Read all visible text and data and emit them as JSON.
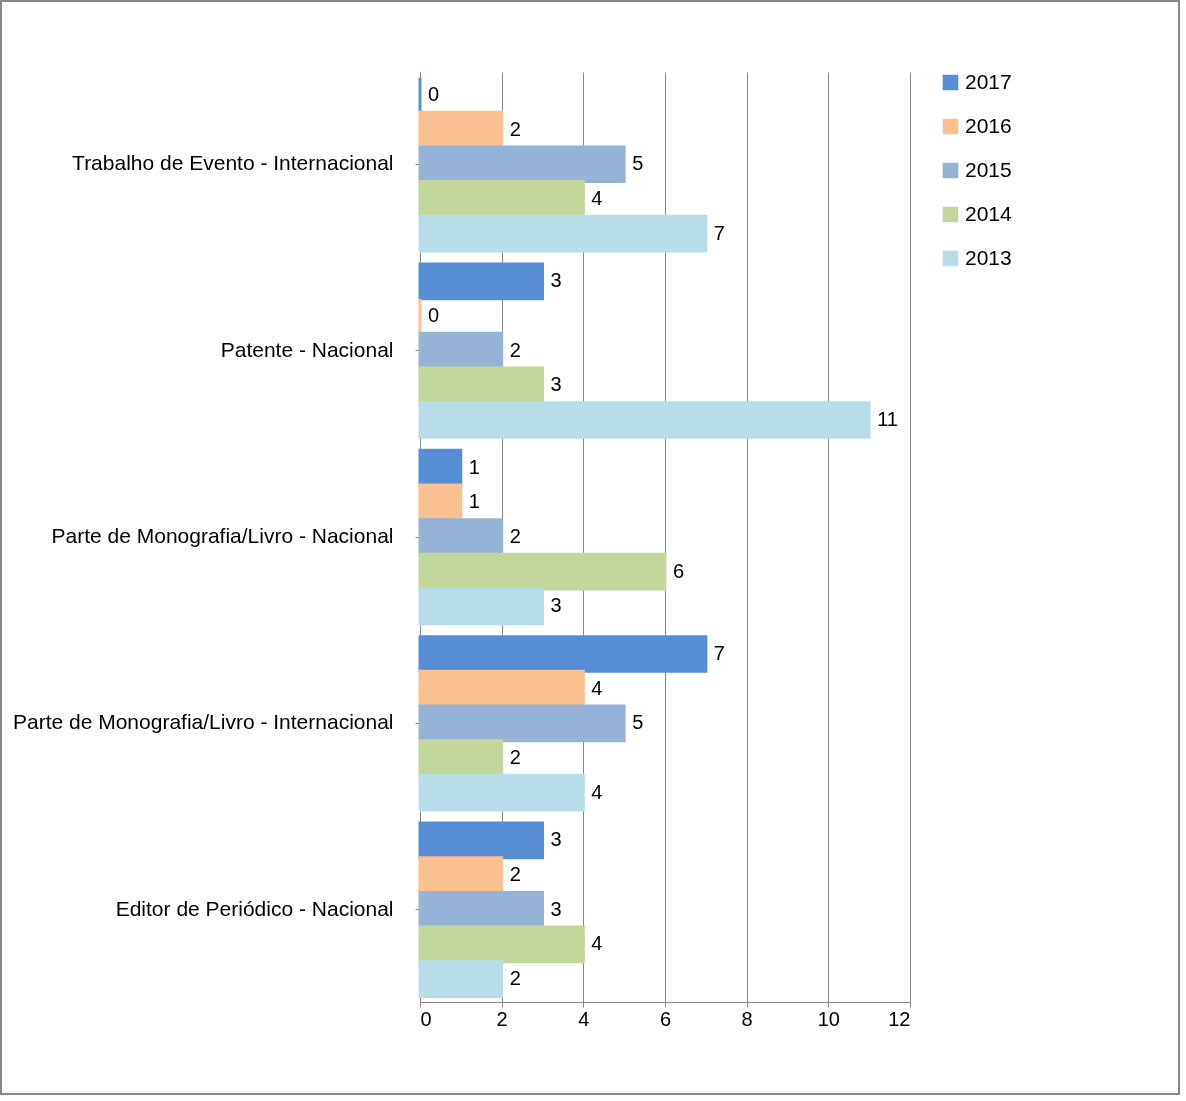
{
  "chart_data": {
    "type": "bar",
    "orientation": "horizontal",
    "categories": [
      "Trabalho de Evento - Internacional",
      "Patente - Nacional",
      "Parte de Monografia/Livro - Nacional",
      "Parte de Monografia/Livro - Internacional",
      "Editor de Periódico - Nacional"
    ],
    "series": [
      {
        "name": "2017",
        "color": "#558ed5",
        "values": [
          0,
          3,
          1,
          7,
          3
        ]
      },
      {
        "name": "2016",
        "color": "#fac090",
        "values": [
          2,
          0,
          1,
          4,
          2
        ]
      },
      {
        "name": "2015",
        "color": "#95b3d7",
        "values": [
          5,
          2,
          2,
          5,
          3
        ]
      },
      {
        "name": "2014",
        "color": "#c3d69b",
        "values": [
          4,
          3,
          6,
          2,
          4
        ]
      },
      {
        "name": "2013",
        "color": "#b7dee8",
        "values": [
          7,
          11,
          3,
          4,
          2
        ]
      }
    ],
    "xlim": [
      0,
      12
    ],
    "xticks": [
      0,
      2,
      4,
      6,
      8,
      10,
      12
    ],
    "grid": "x",
    "legend": "right",
    "data_labels": true
  }
}
